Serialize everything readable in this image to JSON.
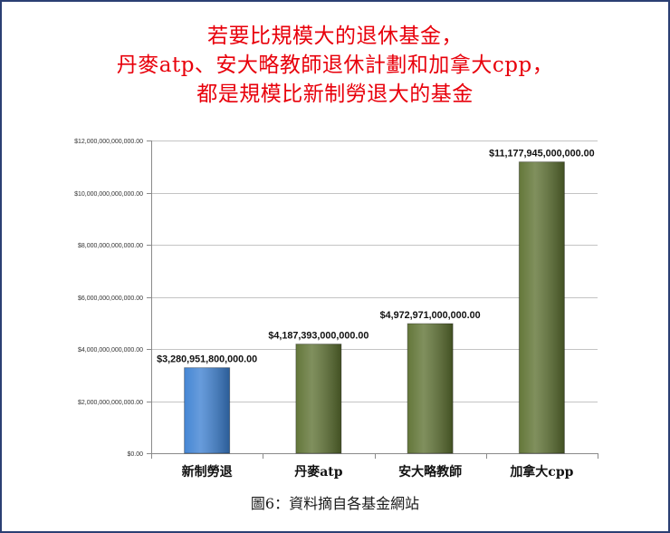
{
  "colors": {
    "title": "#e8000b"
  },
  "chart_data": {
    "type": "bar",
    "title_lines": [
      "若要比規模大的退休基金，",
      "丹麥atp、安大略教師退休計劃和加拿大cpp，",
      "都是規模比新制勞退大的基金"
    ],
    "categories": [
      "新制勞退",
      "丹麥atp",
      "安大略教師",
      "加拿大cpp"
    ],
    "values": [
      3280951800000,
      4187393000000,
      4972971000000,
      11177945000000
    ],
    "data_labels": [
      "$3,280,951,800,000.00",
      "$4,187,393,000,000.00",
      "$4,972,971,000,000.00",
      "$11,177,945,000,000.00"
    ],
    "yticks": [
      0,
      2000000000000,
      4000000000000,
      6000000000000,
      8000000000000,
      10000000000000,
      12000000000000
    ],
    "ytick_labels": [
      "$0.00",
      "$2,000,000,000,000.00",
      "$4,000,000,000,000.00",
      "$6,000,000,000,000.00",
      "$8,000,000,000,000.00",
      "$10,000,000,000,000.00",
      "$12,000,000,000,000.00"
    ],
    "ylim": [
      0,
      12000000000000
    ],
    "grid": true,
    "legend": "none",
    "bar_colors": [
      "#3c80d2",
      "#5c7030",
      "#5c7030",
      "#5c7030"
    ]
  },
  "caption": "圖6：資料摘自各基金網站"
}
